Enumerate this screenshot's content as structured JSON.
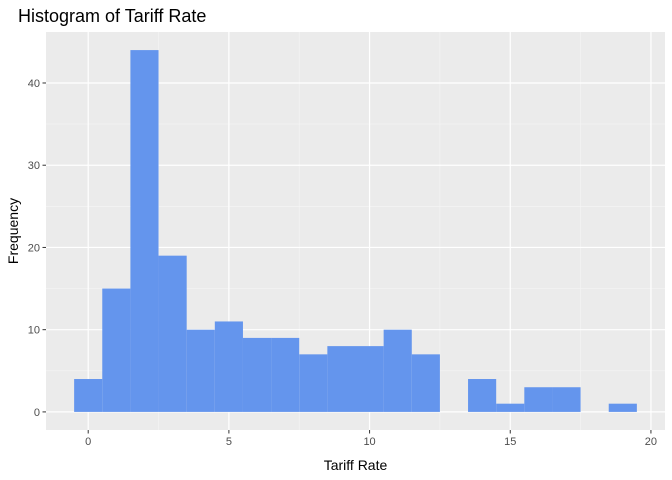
{
  "chart_data": {
    "type": "bar",
    "title": "Histogram of Tariff Rate",
    "xlabel": "Tariff Rate",
    "ylabel": "Frequency",
    "bin_width": 1,
    "bins": [
      {
        "x_start": -0.5,
        "x_end": 0.5,
        "count": 4
      },
      {
        "x_start": 0.5,
        "x_end": 1.5,
        "count": 15
      },
      {
        "x_start": 1.5,
        "x_end": 2.5,
        "count": 44
      },
      {
        "x_start": 2.5,
        "x_end": 3.5,
        "count": 19
      },
      {
        "x_start": 3.5,
        "x_end": 4.5,
        "count": 10
      },
      {
        "x_start": 4.5,
        "x_end": 5.5,
        "count": 11
      },
      {
        "x_start": 5.5,
        "x_end": 6.5,
        "count": 9
      },
      {
        "x_start": 6.5,
        "x_end": 7.5,
        "count": 9
      },
      {
        "x_start": 7.5,
        "x_end": 8.5,
        "count": 7
      },
      {
        "x_start": 8.5,
        "x_end": 9.5,
        "count": 8
      },
      {
        "x_start": 9.5,
        "x_end": 10.5,
        "count": 8
      },
      {
        "x_start": 10.5,
        "x_end": 11.5,
        "count": 10
      },
      {
        "x_start": 11.5,
        "x_end": 12.5,
        "count": 7
      },
      {
        "x_start": 12.5,
        "x_end": 13.5,
        "count": 0
      },
      {
        "x_start": 13.5,
        "x_end": 14.5,
        "count": 4
      },
      {
        "x_start": 14.5,
        "x_end": 15.5,
        "count": 1
      },
      {
        "x_start": 15.5,
        "x_end": 16.5,
        "count": 3
      },
      {
        "x_start": 16.5,
        "x_end": 17.5,
        "count": 3
      },
      {
        "x_start": 17.5,
        "x_end": 18.5,
        "count": 0
      },
      {
        "x_start": 18.5,
        "x_end": 19.5,
        "count": 1
      }
    ],
    "xlim": [
      -1.5,
      20.5
    ],
    "ylim": [
      -2.2,
      46.2
    ],
    "x_ticks": [
      0,
      5,
      10,
      15,
      20
    ],
    "x_tick_labels": [
      "0",
      "5",
      "10",
      "15",
      "20"
    ],
    "y_ticks": [
      0,
      10,
      20,
      30,
      40
    ],
    "y_tick_labels": [
      "0",
      "10",
      "20",
      "30",
      "40"
    ],
    "grid": true,
    "legend": "none",
    "colors": {
      "bar_fill": "#6495ED",
      "panel_background": "#EBEBEB",
      "grid_major": "#FFFFFF",
      "grid_minor": "#F5F5F5"
    }
  }
}
